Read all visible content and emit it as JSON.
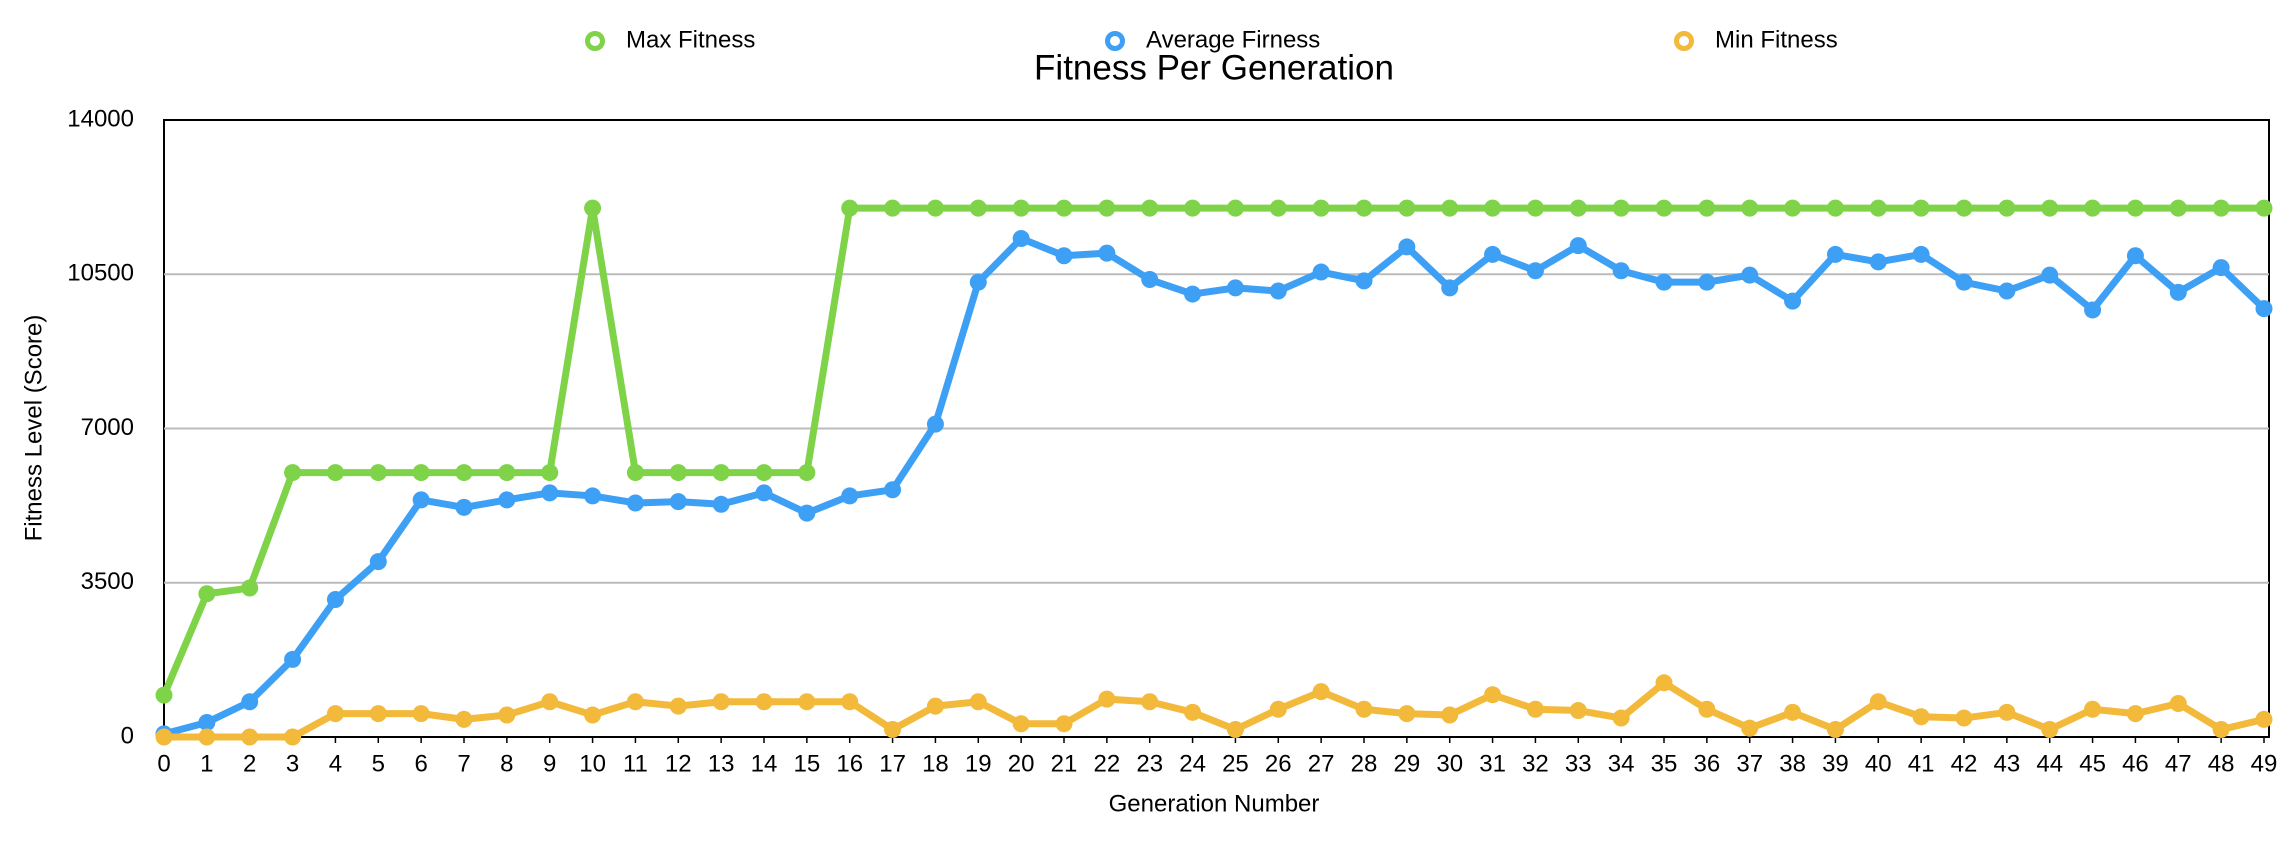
{
  "chart_data": {
    "type": "line",
    "title": "Fitness Per Generation",
    "x_label": "Generation Number",
    "y_label": "Fitness Level (Score)",
    "x": [
      0,
      1,
      2,
      3,
      4,
      5,
      6,
      7,
      8,
      9,
      10,
      11,
      12,
      13,
      14,
      15,
      16,
      17,
      18,
      19,
      20,
      21,
      22,
      23,
      24,
      25,
      26,
      27,
      28,
      29,
      30,
      31,
      32,
      33,
      34,
      35,
      36,
      37,
      38,
      39,
      40,
      41,
      42,
      43,
      44,
      45,
      46,
      47,
      48,
      49
    ],
    "xlim": [
      0,
      49
    ],
    "xticks": [
      0,
      1,
      2,
      3,
      4,
      5,
      6,
      7,
      8,
      9,
      10,
      11,
      12,
      13,
      14,
      15,
      16,
      17,
      18,
      19,
      20,
      21,
      22,
      23,
      24,
      25,
      26,
      27,
      28,
      29,
      30,
      31,
      32,
      33,
      34,
      35,
      36,
      37,
      38,
      39,
      40,
      41,
      42,
      43,
      44,
      45,
      46,
      47,
      48,
      49
    ],
    "ylim": [
      0,
      14000
    ],
    "yticks": [
      0,
      3500,
      7000,
      10500,
      14000
    ],
    "grid": true,
    "legend": "top",
    "series": [
      {
        "name": "Max Fitness",
        "color": "#7ed348",
        "values": [
          950,
          3250,
          3380,
          6000,
          6000,
          6000,
          6000,
          6000,
          6000,
          6000,
          12000,
          6000,
          6000,
          6000,
          6000,
          6000,
          12000,
          12000,
          12000,
          12000,
          12000,
          12000,
          12000,
          12000,
          12000,
          12000,
          12000,
          12000,
          12000,
          12000,
          12000,
          12000,
          12000,
          12000,
          12000,
          12000,
          12000,
          12000,
          12000,
          12000,
          12000,
          12000,
          12000,
          12000,
          12000,
          12000,
          12000,
          12000,
          12000,
          12000
        ]
      },
      {
        "name": "Average Firness",
        "color": "#3ea0f5",
        "values": [
          70,
          330,
          800,
          1760,
          3120,
          3980,
          5380,
          5210,
          5380,
          5540,
          5470,
          5310,
          5340,
          5280,
          5540,
          5080,
          5470,
          5610,
          7100,
          10320,
          11310,
          10920,
          10980,
          10380,
          10050,
          10190,
          10120,
          10550,
          10350,
          11120,
          10190,
          10950,
          10580,
          11150,
          10580,
          10320,
          10320,
          10480,
          9890,
          10950,
          10780,
          10950,
          10320,
          10120,
          10480,
          9690,
          10920,
          10090,
          10650,
          9720
        ]
      },
      {
        "name": "Min Fitness",
        "color": "#f2b93b",
        "values": [
          0,
          0,
          0,
          0,
          530,
          530,
          530,
          400,
          500,
          800,
          500,
          800,
          700,
          800,
          800,
          800,
          800,
          170,
          700,
          800,
          300,
          300,
          860,
          800,
          560,
          170,
          630,
          1030,
          630,
          530,
          500,
          960,
          630,
          600,
          430,
          1230,
          630,
          200,
          560,
          170,
          800,
          460,
          430,
          560,
          170,
          630,
          530,
          760,
          170,
          400
        ]
      }
    ]
  }
}
